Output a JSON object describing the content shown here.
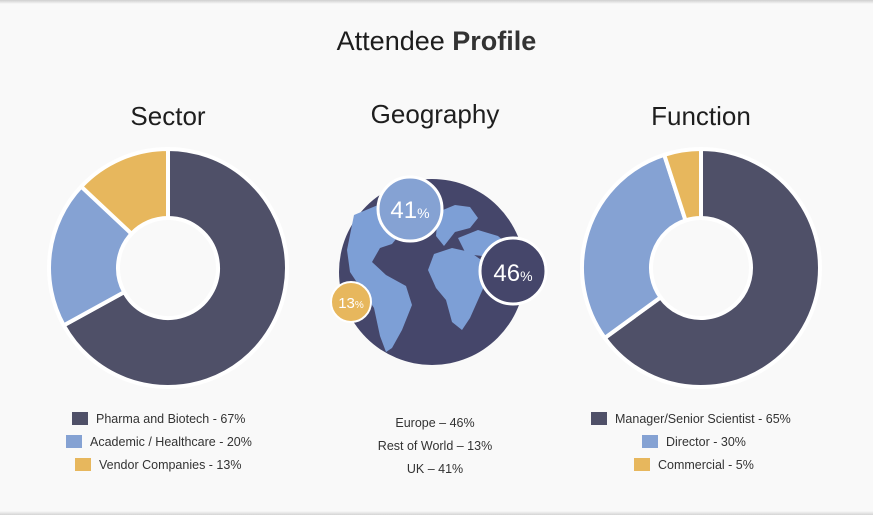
{
  "page": {
    "title_regular": "Attendee",
    "title_bold": "Profile"
  },
  "colors": {
    "dark": "#4f5068",
    "blue": "#85a2d3",
    "gold": "#e7b75d",
    "globe_ocean": "#45466a",
    "globe_land": "#7d9fd6"
  },
  "chart_data": [
    {
      "type": "pie",
      "title": "Sector",
      "labels": [
        "Pharma and Biotech - 67%",
        "Academic / Healthcare - 20%",
        "Vendor Companies - 13%"
      ],
      "values": [
        67,
        20,
        13
      ],
      "colors": [
        "#4f5068",
        "#85a2d3",
        "#e7b75d"
      ]
    },
    {
      "type": "pie",
      "title": "Geography",
      "labels": [
        "Europe – 46%",
        "Rest of World – 13%",
        "UK – 41%"
      ],
      "values": [
        46,
        13,
        41
      ],
      "bubbles": [
        {
          "value": "41",
          "unit": "%"
        },
        {
          "value": "46",
          "unit": "%"
        },
        {
          "value": "13",
          "unit": "%"
        }
      ]
    },
    {
      "type": "pie",
      "title": "Function",
      "labels": [
        "Manager/Senior Scientist - 65%",
        "Director - 30%",
        "Commercial - 5%"
      ],
      "values": [
        65,
        30,
        5
      ],
      "colors": [
        "#4f5068",
        "#85a2d3",
        "#e7b75d"
      ]
    }
  ]
}
